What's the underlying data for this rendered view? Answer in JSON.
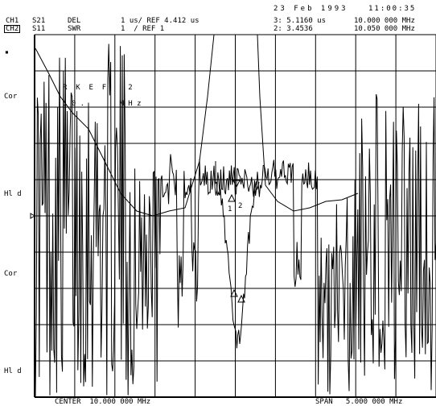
{
  "header": {
    "date": "23 Feb 1993",
    "time": "11:00:35",
    "ch1": {
      "label": "CH1",
      "param": "S21",
      "format": "DEL",
      "scale": "1 us/ REF 4.412 us",
      "marker_readout": "3: 5.1160 us",
      "marker_freq": "10.000 000 MHz"
    },
    "ch2": {
      "label": "CH2",
      "param": "S11",
      "format": "SWR",
      "scale": "1  / REF 1",
      "marker_readout": "2: 3.4536",
      "marker_freq": "10.050 000 MHz"
    }
  },
  "left_annotations": {
    "dot": "▪",
    "cor_1": "Cor",
    "hld_1": "Hl d",
    "cor_2": "Cor",
    "hld_2": "Hl d"
  },
  "in_plot_labels": {
    "marker_frag_1": "R  K  E  F     2",
    "marker_frag_2": "1 0 .        M H z",
    "marker_1": "1",
    "marker_2": "2"
  },
  "footer": {
    "center": "CENTER  10.000 000 MHz",
    "span": "SPAN   5.000 000 MHz"
  },
  "colors": {
    "background": "#ffffff",
    "trace": "#000000",
    "grid": "#000000"
  }
}
